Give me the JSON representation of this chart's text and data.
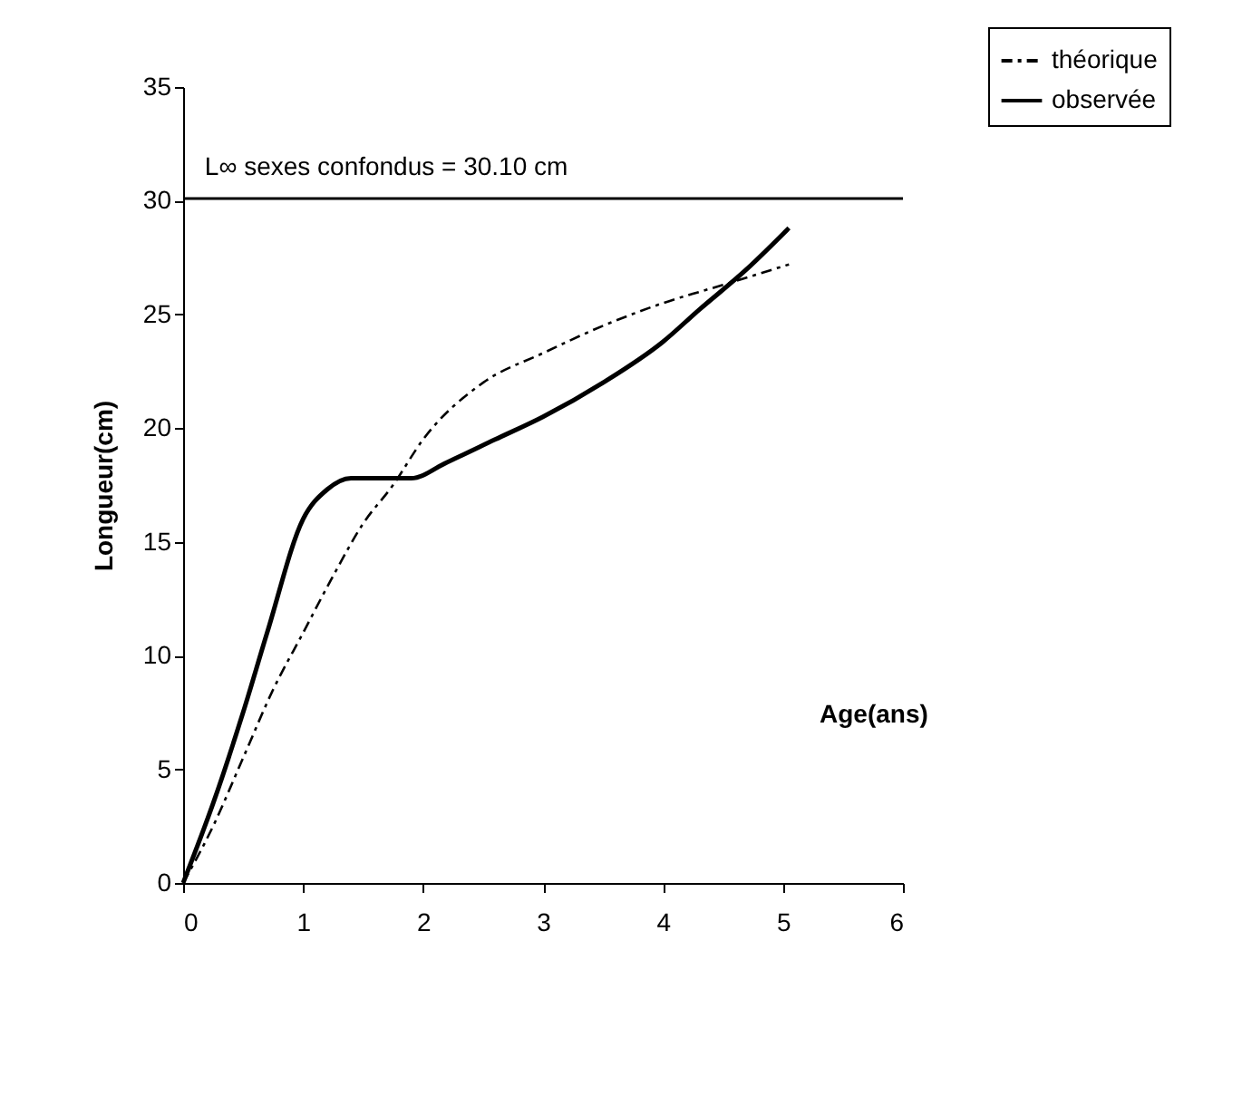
{
  "chart_data": {
    "type": "line",
    "xlabel": "Age(ans)",
    "ylabel": "Longueur(cm)",
    "xlim": [
      0,
      6
    ],
    "xticks": [
      0,
      1,
      2,
      3,
      4,
      5,
      6
    ],
    "ylim": [
      0,
      35
    ],
    "yticks": [
      0,
      5,
      10,
      15,
      20,
      25,
      30,
      35
    ],
    "legend": "top right",
    "series": [
      {
        "name": "théorique",
        "color": "#000000",
        "line_style": "dashed",
        "x": [
          0,
          0.25,
          0.5,
          0.75,
          1,
          1.25,
          1.5,
          1.75,
          2,
          2.5,
          3,
          3.5,
          4,
          4.5,
          5.05
        ],
        "values": [
          0,
          2.5,
          5.5,
          8.5,
          11,
          13.5,
          15.8,
          17.5,
          19.5,
          22,
          23.3,
          24.5,
          25.5,
          26.3,
          27.2
        ]
      },
      {
        "name": "observée",
        "color": "#000000",
        "line_style": "solid",
        "x": [
          0,
          0.25,
          0.5,
          0.7,
          1,
          1.2,
          1.4,
          1.9,
          2.2,
          2.6,
          3,
          3.5,
          4,
          4.3,
          4.7,
          5.05
        ],
        "values": [
          0,
          3.5,
          7.5,
          11,
          16,
          17.3,
          17.8,
          17.8,
          18.5,
          19.5,
          20.5,
          22,
          23.8,
          25.2,
          27,
          28.8
        ]
      }
    ],
    "ref_lines": [
      {
        "axis": "y",
        "value": 30.1,
        "label": "L∞ sexes confondus = 30.10 cm",
        "color": "#000000"
      }
    ]
  }
}
